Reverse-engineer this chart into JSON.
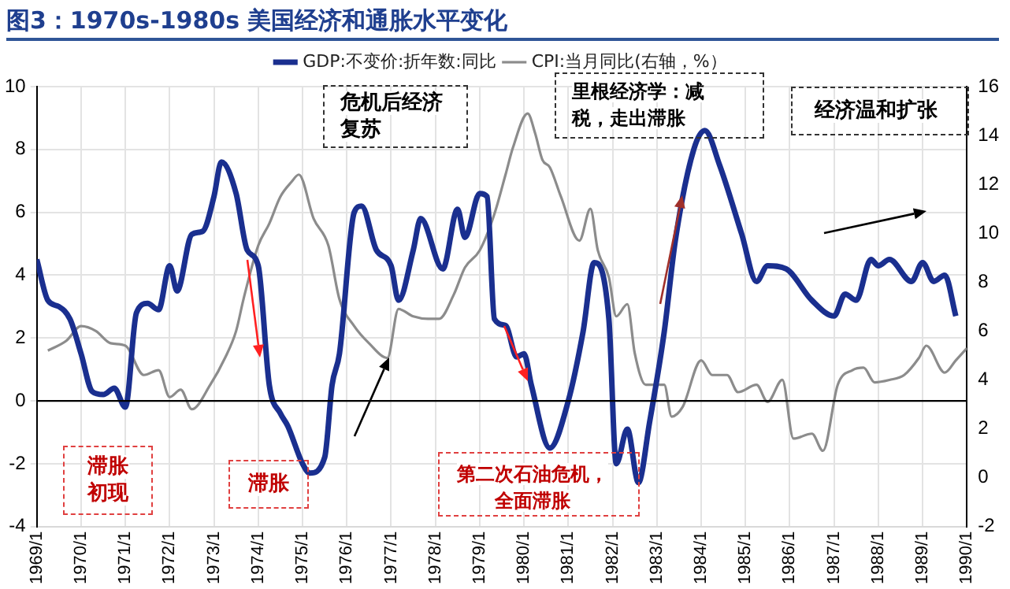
{
  "chart_data": {
    "type": "line",
    "title": "图3：1970s-1980s 美国经济和通胀水平变化",
    "xlim": [
      "1969-01",
      "1990-01"
    ],
    "xticks": [
      {
        "value": "1969-01",
        "label": "1969/1"
      },
      {
        "value": "1970-01",
        "label": "1970/1"
      },
      {
        "value": "1971-01",
        "label": "1971/1"
      },
      {
        "value": "1972-01",
        "label": "1972/1"
      },
      {
        "value": "1973-01",
        "label": "1973/1"
      },
      {
        "value": "1974-01",
        "label": "1974/1"
      },
      {
        "value": "1975-01",
        "label": "1975/1"
      },
      {
        "value": "1976-01",
        "label": "1976/1"
      },
      {
        "value": "1977-01",
        "label": "1977/1"
      },
      {
        "value": "1978-01",
        "label": "1978/1"
      },
      {
        "value": "1979-01",
        "label": "1979/1"
      },
      {
        "value": "1980-01",
        "label": "1980/1"
      },
      {
        "value": "1981-01",
        "label": "1981/1"
      },
      {
        "value": "1982-01",
        "label": "1982/1"
      },
      {
        "value": "1983-01",
        "label": "1983/1"
      },
      {
        "value": "1984-01",
        "label": "1984/1"
      },
      {
        "value": "1985-01",
        "label": "1985/1"
      },
      {
        "value": "1986-01",
        "label": "1986/1"
      },
      {
        "value": "1987-01",
        "label": "1987/1"
      },
      {
        "value": "1988-01",
        "label": "1988/1"
      },
      {
        "value": "1989-01",
        "label": "1989/1"
      },
      {
        "value": "1990-01",
        "label": "1990/1"
      }
    ],
    "ylim": [
      -4,
      10
    ],
    "yticks": [
      -4,
      -2,
      0,
      2,
      4,
      6,
      8,
      10
    ],
    "y2lim": [
      -2,
      16
    ],
    "y2ticks": [
      -2,
      0,
      2,
      4,
      6,
      8,
      10,
      12,
      14,
      16
    ],
    "grid": true,
    "legend": "top",
    "ref_lines": [
      {
        "axis": "y",
        "value": 0,
        "color": "#000000"
      }
    ],
    "series": [
      {
        "name": "GDP:不变价:折年数:同比",
        "color": "#1a2f8f",
        "x": [
          "1969-01",
          "1969-04",
          "1969-07",
          "1969-10",
          "1970-01",
          "1970-04",
          "1970-07",
          "1970-10",
          "1971-01",
          "1971-04",
          "1971-07",
          "1971-10",
          "1972-01",
          "1972-03",
          "1972-07",
          "1972-10",
          "1973-01",
          "1973-03",
          "1973-07",
          "1973-10",
          "1974-01",
          "1974-04",
          "1974-07",
          "1974-09",
          "1975-01",
          "1975-03",
          "1975-07",
          "1975-09",
          "1975-11",
          "1976-03",
          "1976-05",
          "1976-09",
          "1977-01",
          "1977-03",
          "1977-07",
          "1977-09",
          "1978-03",
          "1978-07",
          "1978-09",
          "1979-01",
          "1979-03",
          "1979-05",
          "1979-08",
          "1979-11",
          "1980-01",
          "1980-03",
          "1980-08",
          "1981-01",
          "1981-05",
          "1981-08",
          "1981-12",
          "1982-02",
          "1982-05",
          "1982-08",
          "1982-11",
          "1983-03",
          "1983-06",
          "1983-11",
          "1984-02",
          "1984-06",
          "1984-12",
          "1985-04",
          "1985-07",
          "1985-12",
          "1986-07",
          "1987-01",
          "1987-04",
          "1987-07",
          "1987-11",
          "1988-01",
          "1988-04",
          "1988-10",
          "1989-01",
          "1989-04",
          "1989-07",
          "1989-10"
        ],
        "values": [
          4.5,
          3.2,
          3.0,
          2.6,
          1.5,
          0.3,
          0.2,
          0.4,
          -0.2,
          2.8,
          3.1,
          2.9,
          4.3,
          3.5,
          5.3,
          5.4,
          6.5,
          7.6,
          6.6,
          4.8,
          4.3,
          0.5,
          -0.4,
          -0.8,
          -2.0,
          -2.3,
          -1.8,
          0.5,
          1.5,
          6.0,
          6.2,
          4.8,
          4.3,
          3.2,
          4.8,
          5.8,
          4.2,
          6.1,
          5.2,
          6.6,
          6.5,
          2.6,
          2.4,
          1.4,
          1.5,
          0.5,
          -1.5,
          0,
          2.2,
          4.4,
          2.6,
          -2.0,
          -0.9,
          -2.6,
          -0.7,
          2.2,
          5.1,
          8.0,
          8.6,
          7.5,
          5.3,
          3.8,
          4.3,
          4.2,
          3.2,
          2.7,
          3.4,
          3.2,
          4.5,
          4.3,
          4.5,
          3.8,
          4.4,
          3.8,
          4.0,
          2.7
        ]
      },
      {
        "name": "CPI:当月同比(右轴，%）",
        "color": "#8c8c8c",
        "axis": "y2",
        "x": [
          "1969-04",
          "1969-09",
          "1970-01",
          "1970-05",
          "1970-09",
          "1971-01",
          "1971-06",
          "1971-10",
          "1972-01",
          "1972-04",
          "1972-07",
          "1972-12",
          "1973-04",
          "1973-07",
          "1973-09",
          "1974-01",
          "1974-04",
          "1974-07",
          "1974-10",
          "1974-12",
          "1975-04",
          "1975-08",
          "1975-11",
          "1976-03",
          "1976-07",
          "1976-12",
          "1977-03",
          "1977-07",
          "1977-11",
          "1978-02",
          "1978-06",
          "1978-09",
          "1979-01",
          "1979-05",
          "1979-08",
          "1979-10",
          "1980-02",
          "1980-04",
          "1980-06",
          "1980-08",
          "1980-11",
          "1981-04",
          "1981-07",
          "1981-09",
          "1981-12",
          "1982-02",
          "1982-05",
          "1982-07",
          "1982-10",
          "1983-03",
          "1983-05",
          "1983-08",
          "1984-01",
          "1984-04",
          "1984-08",
          "1984-11",
          "1985-04",
          "1985-07",
          "1985-11",
          "1986-02",
          "1986-07",
          "1986-10",
          "1987-02",
          "1987-06",
          "1987-09",
          "1987-12",
          "1988-04",
          "1988-08",
          "1988-12",
          "1989-02",
          "1989-07",
          "1989-10",
          "1990-01"
        ],
        "values": [
          5.2,
          5.6,
          6.2,
          6.0,
          5.5,
          5.4,
          4.2,
          4.4,
          3.3,
          3.6,
          2.8,
          3.8,
          4.9,
          6.0,
          7.3,
          9.5,
          10.4,
          11.5,
          12.1,
          12.4,
          10.6,
          9.5,
          7.3,
          6.2,
          5.5,
          4.9,
          6.9,
          6.6,
          6.5,
          6.5,
          7.5,
          8.6,
          9.3,
          10.8,
          12.4,
          13.5,
          14.9,
          14.1,
          13.0,
          12.7,
          11.5,
          9.7,
          11.0,
          9.3,
          8.2,
          6.6,
          7.1,
          5.1,
          3.8,
          3.8,
          2.5,
          2.9,
          4.8,
          4.2,
          4.2,
          3.5,
          3.8,
          3.1,
          4.0,
          1.6,
          1.8,
          1.1,
          3.8,
          4.4,
          4.5,
          3.9,
          4.0,
          4.2,
          4.9,
          5.4,
          4.3,
          4.8,
          5.3
        ]
      }
    ],
    "annotations": [
      "危机后经济复苏",
      "里根经济学：减税，走出滞胀",
      "经济温和扩张",
      "滞胀初现",
      "滞胀",
      "第二次石油危机，全面滞胀"
    ]
  }
}
